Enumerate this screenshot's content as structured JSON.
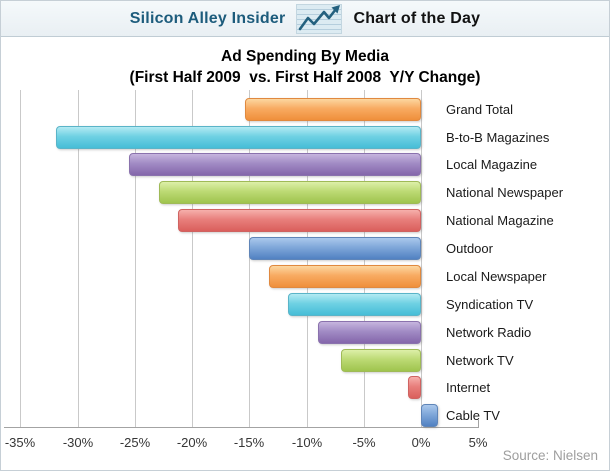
{
  "header": {
    "brand": "Silicon Alley Insider",
    "title": "Chart of the Day"
  },
  "chart_data": {
    "type": "bar",
    "orientation": "horizontal",
    "title_line1": "Ad Spending By Media",
    "title_line2": "(First Half 2009  vs. First Half 2008  Y/Y Change)",
    "categories": [
      "Grand Total",
      "B-to-B Magazines",
      "Local Magazine",
      "National Newspaper",
      "National Magazine",
      "Outdoor",
      "Local Newspaper",
      "Syndication TV",
      "Network Radio",
      "Network TV",
      "Internet",
      "Cable TV"
    ],
    "values": [
      -15.4,
      -31.9,
      -25.5,
      -22.9,
      -21.2,
      -15.0,
      -13.3,
      -11.6,
      -9.0,
      -7.0,
      -1.1,
      1.5
    ],
    "unit": "%",
    "xlim": [
      -36.5,
      5
    ],
    "x_ticks": [
      -35,
      -30,
      -25,
      -20,
      -15,
      -10,
      -5,
      0,
      5
    ],
    "x_tick_labels": [
      "-35%",
      "-30%",
      "-25%",
      "-20%",
      "-15%",
      "-10%",
      "-5%",
      "0%",
      "5%"
    ],
    "grid": true,
    "legend": false,
    "palette": [
      {
        "name": "orange",
        "top": "#fcd7a0",
        "mid": "#f8ab62",
        "main": "#ef8f3b",
        "border": "#e0893f"
      },
      {
        "name": "cyan",
        "top": "#b3eaf3",
        "mid": "#6fd1e3",
        "main": "#46bdd7",
        "border": "#5ab4c8"
      },
      {
        "name": "purple",
        "top": "#c6b5de",
        "mid": "#a18bc4",
        "main": "#8466ab",
        "border": "#8a72ad"
      },
      {
        "name": "green",
        "top": "#ddefa9",
        "mid": "#bcda74",
        "main": "#9fc44e",
        "border": "#9fba57"
      },
      {
        "name": "red",
        "top": "#f6b0ac",
        "mid": "#e87f7c",
        "main": "#da5f5c",
        "border": "#cf6361"
      },
      {
        "name": "blue",
        "top": "#abc8ec",
        "mid": "#7fa7d9",
        "main": "#5181c2",
        "border": "#5f85b8"
      }
    ],
    "brand_color": "#1d5c7c"
  },
  "source": "Source: Nielsen"
}
